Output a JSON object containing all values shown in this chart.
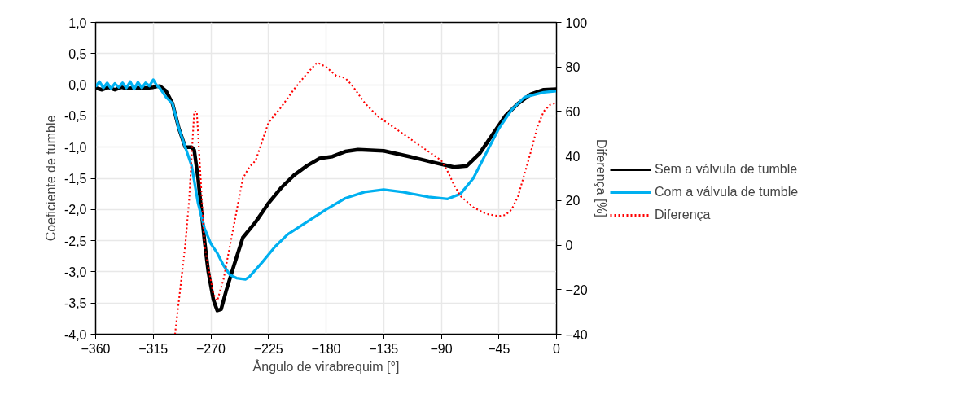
{
  "chart_data": {
    "type": "line",
    "xlabel": "Ângulo de virabrequim [°]",
    "ylabel": "Coeficiente de tumble",
    "y2label": "Diferença [%]",
    "xlim": [
      -360,
      0
    ],
    "xticks": [
      -360,
      -315,
      -270,
      -225,
      -180,
      -135,
      -90,
      -45,
      0
    ],
    "ylim": [
      -4,
      1
    ],
    "yticks": [
      {
        "value": -4,
        "label": "-4,0"
      },
      {
        "value": -3.5,
        "label": "-3,5"
      },
      {
        "value": -3,
        "label": "-3,0"
      },
      {
        "value": -2.5,
        "label": "-2,5"
      },
      {
        "value": -2,
        "label": "-2,0"
      },
      {
        "value": -1.5,
        "label": "-1,5"
      },
      {
        "value": -1,
        "label": "-1,0"
      },
      {
        "value": -0.5,
        "label": "-0,5"
      },
      {
        "value": 0,
        "label": "0,0"
      },
      {
        "value": 0.5,
        "label": "0,5"
      },
      {
        "value": 1,
        "label": "1,0"
      }
    ],
    "y2lim": [
      -40,
      100
    ],
    "y2ticks": [
      -40,
      -20,
      0,
      20,
      40,
      60,
      80,
      100
    ],
    "grid": true,
    "legend": "right",
    "marker": "none",
    "series": [
      {
        "name": "Sem a válvula de tumble",
        "color": "#000000",
        "line_style": "solid",
        "x": [
          -360,
          -355,
          -350,
          -345,
          -340,
          -335,
          -330,
          -325,
          -320,
          -315,
          -310,
          -305,
          -300,
          -295,
          -290,
          -285,
          -283,
          -280,
          -277,
          -275,
          -272,
          -268,
          -265,
          -262,
          -258,
          -252,
          -245,
          -235,
          -225,
          -215,
          -205,
          -195,
          -185,
          -175,
          -165,
          -155,
          -135,
          -115,
          -95,
          -80,
          -70,
          -60,
          -50,
          -40,
          -30,
          -20,
          -10,
          0
        ],
        "values": [
          -0.05,
          -0.08,
          -0.04,
          -0.08,
          -0.04,
          -0.06,
          -0.05,
          -0.05,
          -0.05,
          -0.04,
          -0.02,
          -0.1,
          -0.3,
          -0.7,
          -1.0,
          -1.0,
          -1.05,
          -1.5,
          -2.1,
          -2.5,
          -3.0,
          -3.45,
          -3.62,
          -3.6,
          -3.3,
          -2.9,
          -2.45,
          -2.2,
          -1.9,
          -1.65,
          -1.45,
          -1.3,
          -1.18,
          -1.15,
          -1.07,
          -1.04,
          -1.06,
          -1.15,
          -1.25,
          -1.32,
          -1.3,
          -1.1,
          -0.8,
          -0.5,
          -0.3,
          -0.15,
          -0.08,
          -0.07
        ]
      },
      {
        "name": "Com a válvula de tumble",
        "color": "#00b0f0",
        "line_style": "solid",
        "x": [
          -360,
          -357,
          -354,
          -351,
          -348,
          -345,
          -342,
          -339,
          -336,
          -333,
          -330,
          -327,
          -324,
          -321,
          -318,
          -315,
          -312,
          -310,
          -305,
          -300,
          -295,
          -290,
          -285,
          -280,
          -275,
          -270,
          -265,
          -260,
          -255,
          -250,
          -243,
          -240,
          -230,
          -220,
          -210,
          -195,
          -180,
          -165,
          -150,
          -135,
          -120,
          -100,
          -85,
          -75,
          -65,
          -55,
          -45,
          -35,
          -25,
          -10,
          0
        ],
        "values": [
          -0.03,
          0.05,
          -0.05,
          0.03,
          -0.06,
          0.02,
          -0.04,
          0.03,
          -0.05,
          0.05,
          -0.07,
          0.04,
          -0.05,
          0.03,
          -0.02,
          0.08,
          -0.02,
          -0.05,
          -0.2,
          -0.3,
          -0.7,
          -1.0,
          -1.3,
          -1.9,
          -2.3,
          -2.55,
          -2.7,
          -2.9,
          -3.05,
          -3.1,
          -3.12,
          -3.08,
          -2.85,
          -2.6,
          -2.4,
          -2.2,
          -2.0,
          -1.82,
          -1.72,
          -1.68,
          -1.72,
          -1.8,
          -1.83,
          -1.75,
          -1.5,
          -1.1,
          -0.7,
          -0.4,
          -0.2,
          -0.12,
          -0.1
        ]
      },
      {
        "name": "Diferença",
        "color": "#ff0000",
        "line_style": "dotted",
        "axis": "y2",
        "x": [
          -298,
          -295,
          -290,
          -287,
          -285,
          -283,
          -281,
          -279,
          -277,
          -275,
          -272,
          -268,
          -265,
          -260,
          -255,
          -250,
          -245,
          -240,
          -235,
          -225,
          -215,
          -205,
          -195,
          -187,
          -180,
          -172,
          -165,
          -160,
          -150,
          -140,
          -130,
          -120,
          -110,
          -100,
          -90,
          -85,
          -80,
          -75,
          -65,
          -55,
          -45,
          -40,
          -35,
          -30,
          -25,
          -20,
          -15,
          -10,
          -5,
          0
        ],
        "values": [
          -40,
          -25,
          0,
          20,
          40,
          60,
          60,
          40,
          20,
          0,
          -10,
          -22,
          -25,
          -15,
          0,
          15,
          30,
          35,
          38,
          55,
          62,
          70,
          77,
          82,
          80,
          76,
          75,
          72,
          64,
          58,
          54,
          50,
          46,
          42,
          38,
          33,
          27,
          22,
          17,
          14,
          13,
          13.5,
          16,
          22,
          32,
          42,
          53,
          60,
          63,
          64
        ]
      }
    ]
  }
}
